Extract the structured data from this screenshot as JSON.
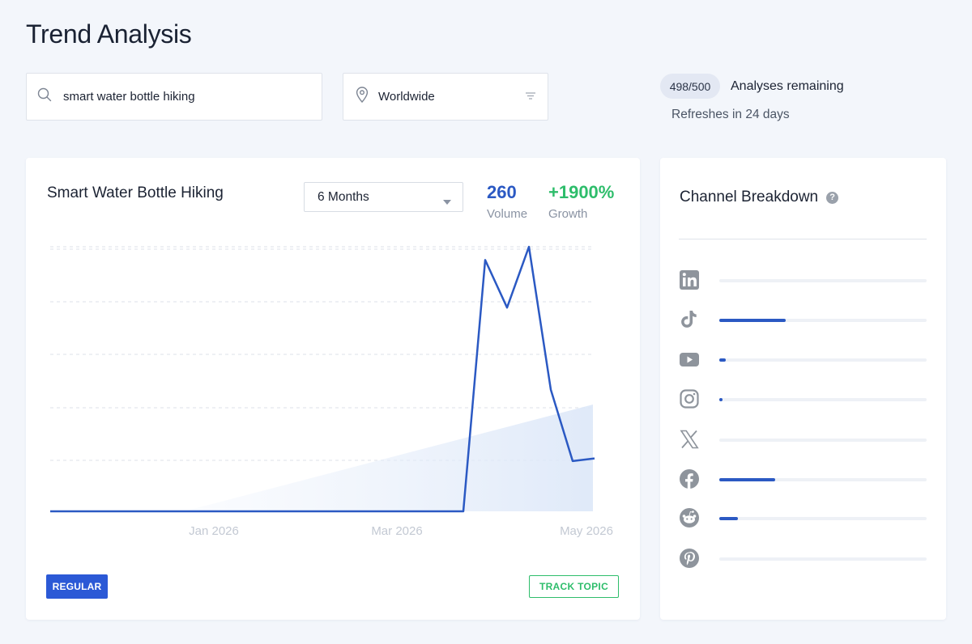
{
  "page": {
    "title": "Trend Analysis"
  },
  "search": {
    "value": "smart water bottle hiking",
    "placeholder": ""
  },
  "location": {
    "value": "Worldwide"
  },
  "quota": {
    "badge": "498/500",
    "label": "Analyses remaining",
    "refresh": "Refreshes in 24 days"
  },
  "trend_card": {
    "title": "Smart Water Bottle Hiking",
    "range": "6 Months",
    "volume_value": "260",
    "volume_label": "Volume",
    "growth_value": "+1900%",
    "growth_label": "Growth",
    "tag": "REGULAR",
    "track_button": "TRACK TOPIC"
  },
  "chart_data": {
    "type": "line",
    "x_ticks": [
      "Jan 2026",
      "Mar 2026",
      "May 2026"
    ],
    "y_axis_labels": "none",
    "grid": "horizontal dashed",
    "series": [
      {
        "values": [
          0,
          0,
          0,
          0,
          0,
          0,
          0,
          0,
          0,
          0,
          0,
          0,
          0,
          0,
          0,
          0,
          0,
          0,
          0,
          0,
          95,
          77,
          100,
          46,
          19,
          20
        ],
        "color": "#2b59c3"
      }
    ],
    "trend_area": "rising linear fill from x≈25% to end",
    "ylim": [
      0,
      100
    ]
  },
  "channels": {
    "title": "Channel Breakdown",
    "help_icon": "?",
    "items": [
      {
        "icon": "linkedin-icon",
        "share": 0.0
      },
      {
        "icon": "tiktok-icon",
        "share": 0.32
      },
      {
        "icon": "youtube-icon",
        "share": 0.03
      },
      {
        "icon": "instagram-icon",
        "share": 0.015
      },
      {
        "icon": "x-twitter-icon",
        "share": 0.0
      },
      {
        "icon": "facebook-icon",
        "share": 0.27
      },
      {
        "icon": "reddit-icon",
        "share": 0.09
      },
      {
        "icon": "pinterest-icon",
        "share": 0.0
      }
    ]
  },
  "colors": {
    "accent": "#2b59c3",
    "positive": "#2ebd6b",
    "badge": "#2b59d6"
  }
}
